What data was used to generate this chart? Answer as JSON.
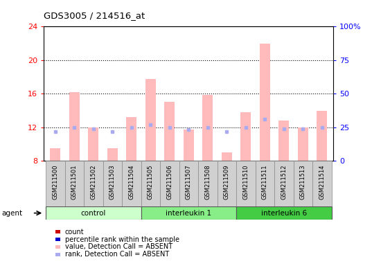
{
  "title": "GDS3005 / 214516_at",
  "samples": [
    "GSM211500",
    "GSM211501",
    "GSM211502",
    "GSM211503",
    "GSM211504",
    "GSM211505",
    "GSM211506",
    "GSM211507",
    "GSM211508",
    "GSM211509",
    "GSM211510",
    "GSM211511",
    "GSM211512",
    "GSM211513",
    "GSM211514"
  ],
  "groups": [
    {
      "label": "control",
      "start": 0,
      "end": 5,
      "color": "#ccffcc"
    },
    {
      "label": "interleukin 1",
      "start": 5,
      "end": 10,
      "color": "#88ee88"
    },
    {
      "label": "interleukin 6",
      "start": 10,
      "end": 15,
      "color": "#44cc44"
    }
  ],
  "bar_values": [
    9.5,
    16.2,
    12.0,
    9.5,
    13.2,
    17.8,
    15.0,
    11.7,
    15.9,
    9.0,
    13.8,
    22.0,
    12.8,
    12.0,
    14.0
  ],
  "rank_values": [
    11.5,
    12.0,
    11.8,
    11.5,
    12.0,
    12.3,
    12.0,
    11.7,
    12.0,
    11.5,
    12.0,
    13.0,
    11.8,
    11.8,
    12.0
  ],
  "bar_color": "#ffbbbb",
  "rank_color": "#aaaaee",
  "ylim_left": [
    8,
    24
  ],
  "ylim_right": [
    0,
    100
  ],
  "yticks_left": [
    8,
    12,
    16,
    20,
    24
  ],
  "yticks_right": [
    0,
    25,
    50,
    75,
    100
  ],
  "right_tick_labels": [
    "0",
    "25",
    "50",
    "75",
    "100%"
  ],
  "grid_lines": [
    12,
    16,
    20
  ],
  "agent_label": "agent",
  "legend_items": [
    {
      "color": "#cc0000",
      "label": "count"
    },
    {
      "color": "#0000cc",
      "label": "percentile rank within the sample"
    },
    {
      "color": "#ffbbbb",
      "label": "value, Detection Call = ABSENT"
    },
    {
      "color": "#aaaaee",
      "label": "rank, Detection Call = ABSENT"
    }
  ]
}
